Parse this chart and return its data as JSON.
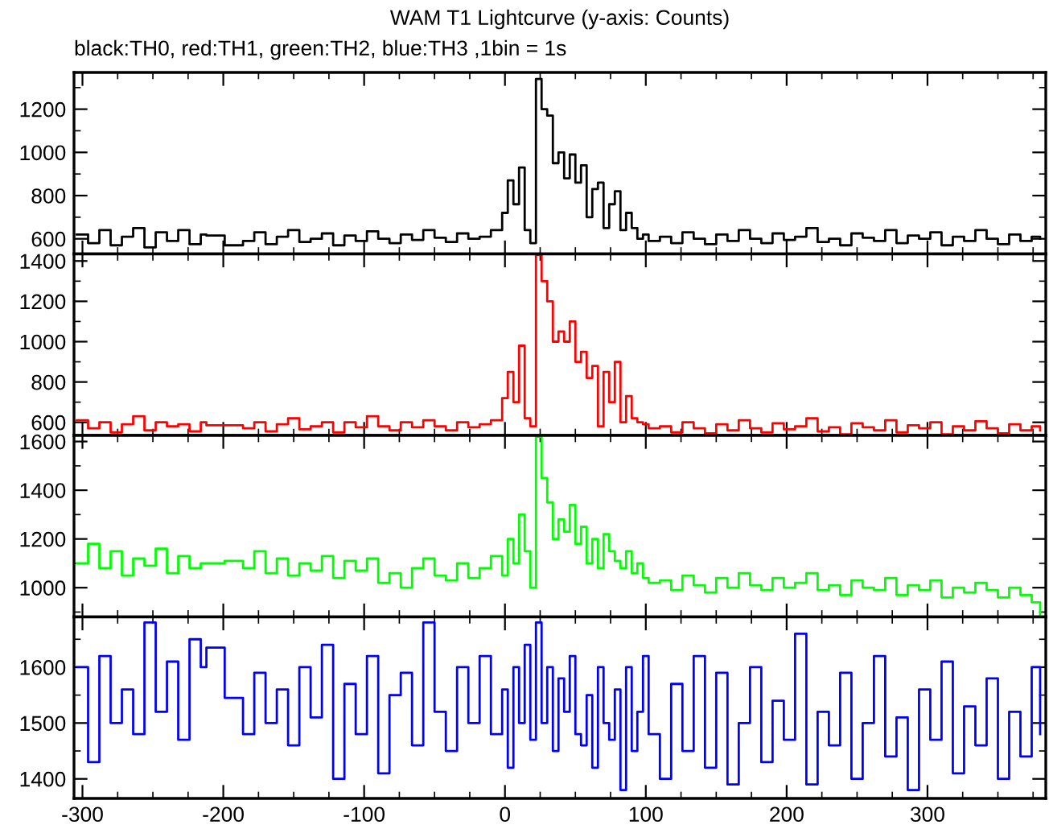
{
  "chart_data": [
    {
      "type": "step",
      "title": "WAM T1 Lightcurve (y-axis: Counts)",
      "subtitle": "black:TH0, red:TH1, green:TH2, blue:TH3 ,1bin = 1s",
      "tick_labels": "y",
      "x": [
        -304,
        -296,
        -288,
        -280,
        -272,
        -264,
        -256,
        -248,
        -240,
        -232,
        -224,
        -216,
        -212,
        -199,
        -186,
        -178,
        -170,
        -162,
        -154,
        -146,
        -138,
        -130,
        -122,
        -114,
        -106,
        -98,
        -90,
        -82,
        -74,
        -66,
        -58,
        -50,
        -42,
        -34,
        -26,
        -18,
        -10,
        -2,
        2,
        6,
        10,
        14,
        18,
        22,
        26,
        30,
        34,
        38,
        42,
        46,
        50,
        54,
        58,
        62,
        66,
        70,
        74,
        78,
        82,
        86,
        90,
        94,
        98,
        102,
        110,
        118,
        126,
        134,
        142,
        150,
        158,
        166,
        174,
        182,
        190,
        198,
        206,
        214,
        222,
        230,
        238,
        246,
        254,
        262,
        270,
        278,
        286,
        294,
        302,
        310,
        318,
        326,
        334,
        342,
        350,
        358,
        366,
        374,
        380
      ],
      "series": [
        {
          "color": "#000000",
          "values": [
            620,
            580,
            640,
            570,
            610,
            650,
            560,
            630,
            590,
            640,
            575,
            620,
            615,
            570,
            590,
            630,
            575,
            610,
            640,
            585,
            600,
            625,
            570,
            615,
            590,
            635,
            600,
            580,
            620,
            595,
            640,
            605,
            585,
            625,
            600,
            610,
            640,
            720,
            870,
            760,
            930,
            640,
            580,
            1340,
            1200,
            1170,
            950,
            1000,
            880,
            990,
            860,
            940,
            700,
            830,
            860,
            650,
            760,
            820,
            640,
            720,
            650,
            600,
            620,
            590,
            610,
            580,
            630,
            600,
            575,
            620,
            590,
            640,
            600,
            580,
            625,
            595,
            610,
            650,
            585,
            600,
            570,
            625,
            605,
            590,
            640,
            580,
            615,
            600,
            630,
            570,
            610,
            590,
            640,
            600,
            575,
            620,
            590,
            610,
            600
          ]
        }
      ],
      "xlim": [
        -306,
        384
      ],
      "xticks": [
        -300,
        -200,
        -100,
        0,
        100,
        200,
        300
      ],
      "ylim": [
        530,
        1370
      ],
      "yticks": [
        600,
        800,
        1000,
        1200
      ]
    },
    {
      "type": "step",
      "tick_labels": "y",
      "x": [
        -304,
        -296,
        -288,
        -280,
        -272,
        -264,
        -256,
        -248,
        -240,
        -232,
        -224,
        -216,
        -212,
        -199,
        -186,
        -178,
        -170,
        -162,
        -154,
        -146,
        -138,
        -130,
        -122,
        -114,
        -106,
        -98,
        -90,
        -82,
        -74,
        -66,
        -58,
        -50,
        -42,
        -34,
        -26,
        -18,
        -10,
        -2,
        2,
        6,
        10,
        14,
        18,
        22,
        26,
        30,
        34,
        38,
        42,
        46,
        50,
        54,
        58,
        62,
        66,
        70,
        74,
        78,
        82,
        86,
        90,
        94,
        98,
        102,
        110,
        118,
        126,
        134,
        142,
        150,
        158,
        166,
        174,
        182,
        190,
        198,
        206,
        214,
        222,
        230,
        238,
        246,
        254,
        262,
        270,
        278,
        286,
        294,
        302,
        310,
        318,
        326,
        334,
        342,
        350,
        358,
        366,
        374,
        380
      ],
      "series": [
        {
          "color": "#ff0000",
          "values": [
            610,
            570,
            600,
            550,
            590,
            630,
            560,
            600,
            580,
            590,
            555,
            600,
            585,
            585,
            570,
            600,
            555,
            590,
            620,
            565,
            580,
            600,
            550,
            600,
            575,
            630,
            580,
            560,
            600,
            575,
            610,
            580,
            560,
            600,
            575,
            590,
            610,
            720,
            850,
            700,
            980,
            620,
            580,
            1430,
            1300,
            1200,
            1000,
            1050,
            1000,
            1100,
            900,
            950,
            820,
            880,
            580,
            850,
            700,
            900,
            600,
            730,
            620,
            600,
            590,
            570,
            580,
            550,
            600,
            570,
            545,
            590,
            560,
            610,
            570,
            550,
            595,
            565,
            580,
            620,
            555,
            575,
            540,
            595,
            575,
            560,
            610,
            550,
            585,
            570,
            600,
            540,
            580,
            560,
            605,
            570,
            545,
            590,
            560,
            580,
            560
          ]
        }
      ],
      "xlim": [
        -306,
        384
      ],
      "xticks": [
        -300,
        -200,
        -100,
        0,
        100,
        200,
        300
      ],
      "ylim": [
        535,
        1435
      ],
      "yticks": [
        600,
        800,
        1000,
        1200,
        1400
      ]
    },
    {
      "type": "step",
      "tick_labels": "y",
      "x": [
        -304,
        -296,
        -288,
        -280,
        -272,
        -264,
        -256,
        -248,
        -240,
        -232,
        -224,
        -216,
        -212,
        -199,
        -186,
        -178,
        -170,
        -162,
        -154,
        -146,
        -138,
        -130,
        -122,
        -114,
        -106,
        -98,
        -90,
        -82,
        -74,
        -66,
        -58,
        -50,
        -42,
        -34,
        -26,
        -18,
        -10,
        -2,
        2,
        6,
        10,
        14,
        18,
        22,
        26,
        30,
        34,
        38,
        42,
        46,
        50,
        54,
        58,
        62,
        66,
        70,
        74,
        78,
        82,
        86,
        90,
        94,
        98,
        102,
        110,
        118,
        126,
        134,
        142,
        150,
        158,
        166,
        174,
        182,
        190,
        198,
        206,
        214,
        222,
        230,
        238,
        246,
        254,
        262,
        270,
        278,
        286,
        294,
        302,
        310,
        318,
        326,
        334,
        342,
        350,
        358,
        366,
        374,
        380
      ],
      "series": [
        {
          "color": "#00ff00",
          "values": [
            1100,
            1180,
            1080,
            1150,
            1050,
            1120,
            1090,
            1160,
            1060,
            1130,
            1080,
            1100,
            1100,
            1110,
            1080,
            1150,
            1060,
            1120,
            1050,
            1100,
            1070,
            1130,
            1040,
            1110,
            1070,
            1120,
            1020,
            1060,
            1000,
            1080,
            1120,
            1050,
            1030,
            1100,
            1040,
            1080,
            1130,
            1050,
            1200,
            1100,
            1300,
            1150,
            1000,
            1620,
            1450,
            1350,
            1200,
            1280,
            1230,
            1340,
            1180,
            1250,
            1100,
            1200,
            1080,
            1220,
            1150,
            1110,
            1080,
            1150,
            1060,
            1100,
            1040,
            1020,
            1030,
            990,
            1050,
            1010,
            980,
            1040,
            1000,
            1060,
            1010,
            990,
            1040,
            1000,
            1020,
            1060,
            990,
            1010,
            970,
            1030,
            1000,
            990,
            1040,
            970,
            1010,
            990,
            1030,
            960,
            1000,
            980,
            1020,
            990,
            960,
            1000,
            970,
            940,
            890
          ]
        }
      ],
      "xlim": [
        -306,
        384
      ],
      "xticks": [
        -300,
        -200,
        -100,
        0,
        100,
        200,
        300
      ],
      "ylim": [
        880,
        1625
      ],
      "yticks": [
        1000,
        1200,
        1400,
        1600
      ]
    },
    {
      "type": "step",
      "x": [
        -304,
        -296,
        -288,
        -280,
        -272,
        -264,
        -256,
        -248,
        -240,
        -232,
        -224,
        -216,
        -212,
        -199,
        -186,
        -178,
        -170,
        -162,
        -154,
        -146,
        -138,
        -130,
        -122,
        -114,
        -106,
        -98,
        -90,
        -82,
        -74,
        -66,
        -58,
        -50,
        -42,
        -34,
        -26,
        -18,
        -10,
        -2,
        2,
        6,
        10,
        14,
        18,
        22,
        26,
        30,
        34,
        38,
        42,
        46,
        50,
        54,
        58,
        62,
        66,
        70,
        74,
        78,
        82,
        86,
        90,
        94,
        98,
        102,
        110,
        118,
        126,
        134,
        142,
        150,
        158,
        166,
        174,
        182,
        190,
        198,
        206,
        214,
        222,
        230,
        238,
        246,
        254,
        262,
        270,
        278,
        286,
        294,
        302,
        310,
        318,
        326,
        334,
        342,
        350,
        358,
        366,
        374,
        380
      ],
      "series": [
        {
          "color": "#0000ff",
          "values": [
            1600,
            1430,
            1620,
            1500,
            1560,
            1480,
            1680,
            1520,
            1610,
            1470,
            1650,
            1600,
            1635,
            1545,
            1480,
            1590,
            1500,
            1560,
            1460,
            1600,
            1510,
            1640,
            1400,
            1570,
            1480,
            1620,
            1410,
            1550,
            1590,
            1460,
            1680,
            1520,
            1450,
            1600,
            1500,
            1620,
            1480,
            1560,
            1420,
            1600,
            1500,
            1640,
            1470,
            1680,
            1500,
            1600,
            1450,
            1580,
            1520,
            1620,
            1480,
            1460,
            1550,
            1420,
            1600,
            1500,
            1470,
            1560,
            1380,
            1600,
            1450,
            1520,
            1620,
            1480,
            1400,
            1570,
            1450,
            1620,
            1420,
            1590,
            1390,
            1500,
            1600,
            1430,
            1540,
            1470,
            1660,
            1390,
            1520,
            1460,
            1590,
            1400,
            1500,
            1620,
            1440,
            1510,
            1380,
            1560,
            1470,
            1610,
            1410,
            1530,
            1460,
            1580,
            1400,
            1520,
            1440,
            1600,
            1480
          ]
        }
      ],
      "xlim": [
        -306,
        384
      ],
      "xticks": [
        -300,
        -200,
        -100,
        0,
        100,
        200,
        300
      ],
      "ylim": [
        1365,
        1690
      ],
      "yticks": [
        1400,
        1500,
        1600
      ]
    }
  ]
}
